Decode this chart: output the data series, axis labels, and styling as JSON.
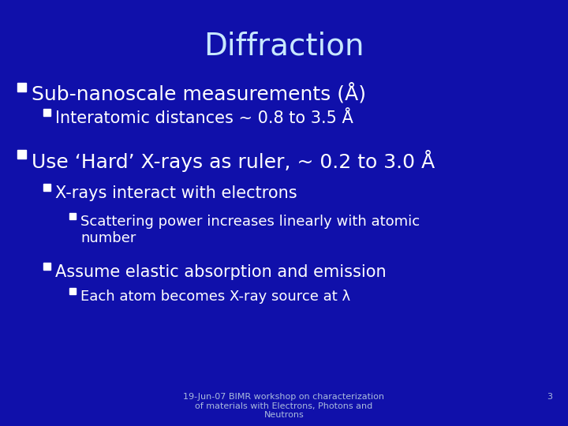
{
  "title": "Diffraction",
  "background_color": "#1010AA",
  "title_color": "#C8E8FF",
  "text_color": "#FFFFFF",
  "footer_text": "19-Jun-07 BIMR workshop on characterization\nof materials with Electrons, Photons and\nNeutrons",
  "footer_page": "3",
  "bullet1": "Sub-nanoscale measurements (Å)",
  "bullet1_sub1": "Interatomic distances ~ 0.8 to 3.5 Å",
  "bullet2": "Use ‘Hard’ X-rays as ruler, ~ 0.2 to 3.0 Å",
  "bullet2_sub1": "X-rays interact with electrons",
  "bullet2_sub1_sub1": "Scattering power increases linearly with atomic\nnumber",
  "bullet2_sub2": "Assume elastic absorption and emission",
  "bullet2_sub2_sub1": "Each atom becomes X-ray source at λ",
  "title_fontsize": 28,
  "bullet_fontsize": 18,
  "sub_bullet_fontsize": 15,
  "sub_sub_bullet_fontsize": 13,
  "footer_fontsize": 8
}
